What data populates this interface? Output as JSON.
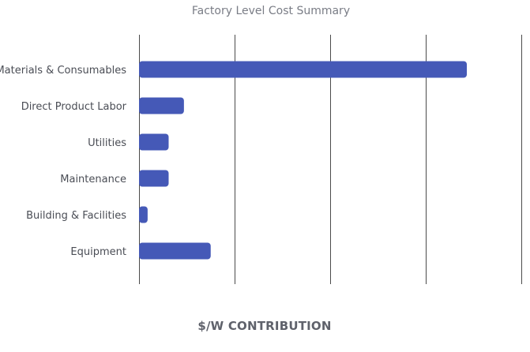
{
  "chart_data": {
    "type": "bar",
    "orientation": "horizontal",
    "title": "Factory Level Cost Summary",
    "xlabel": "$/W CONTRIBUTION",
    "ylabel": "",
    "categories": [
      "Materials & Consumables",
      "Direct Product Labor",
      "Utilities",
      "Maintenance",
      "Building & Facilities",
      "Equipment"
    ],
    "values": [
      0.343,
      0.047,
      0.031,
      0.031,
      0.009,
      0.075
    ],
    "xlim": [
      0,
      0.4
    ],
    "grid": true,
    "tick_labels_visible": false,
    "bar_color": "#4559b7"
  }
}
